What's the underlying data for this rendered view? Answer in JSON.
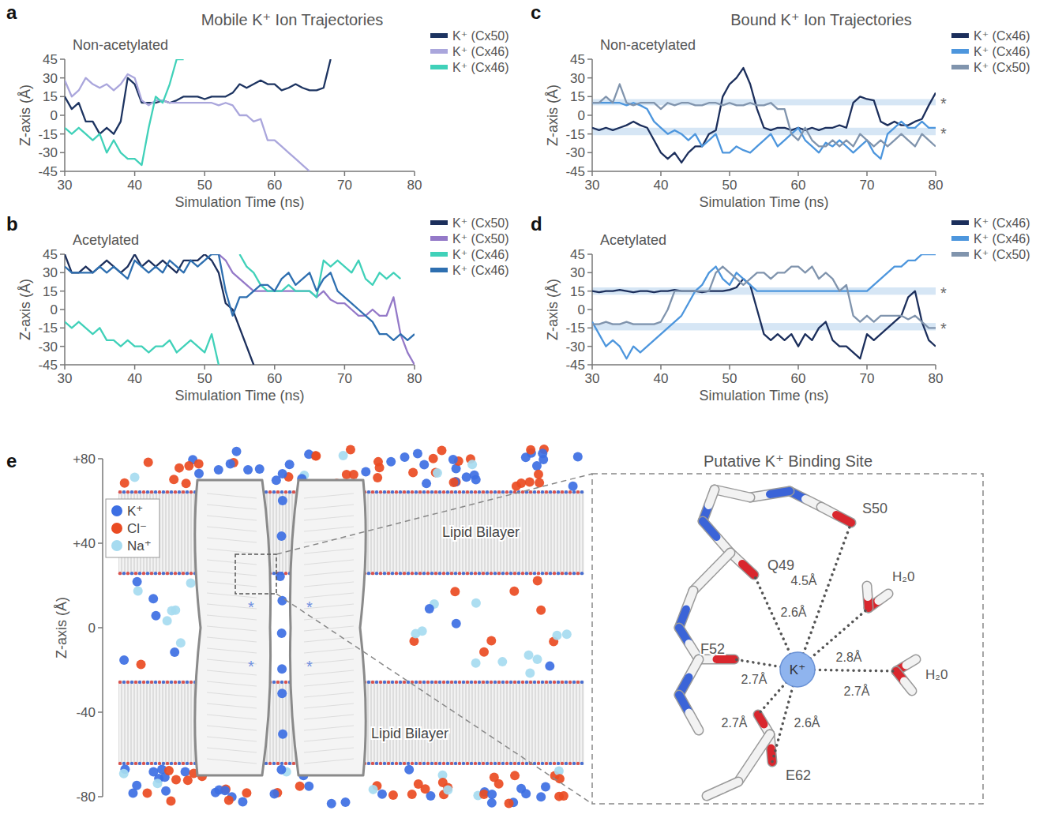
{
  "chart_data": [
    {
      "type": "line",
      "panel_label": "a",
      "title": "Mobile K⁺ Ion Trajectories",
      "subtitle": "Non-acetylated",
      "x_label": "Simulation Time (ns)",
      "y_label": "Z-axis (Å)",
      "x": [
        30,
        31,
        32,
        33,
        34,
        35,
        36,
        37,
        38,
        39,
        40,
        41,
        42,
        43,
        44,
        45,
        46,
        47,
        48,
        49,
        50,
        51,
        52,
        53,
        54,
        55,
        56,
        57,
        58,
        59,
        60,
        61,
        62,
        63,
        64,
        65,
        66,
        67,
        68,
        69,
        70,
        71,
        72,
        73,
        74,
        75,
        76,
        77,
        78,
        79,
        80
      ],
      "xlim": [
        30,
        80
      ],
      "xticks": [
        30,
        40,
        50,
        60,
        70,
        80
      ],
      "ylim": [
        -45,
        45
      ],
      "yticks": [
        -45,
        -30,
        -15,
        0,
        15,
        30,
        45
      ],
      "legend": "right",
      "series": [
        {
          "name": "K⁺ (Cx50)",
          "color": "#1d3461",
          "values": [
            15,
            5,
            10,
            -5,
            -5,
            -15,
            -10,
            -15,
            -5,
            30,
            25,
            10,
            10,
            10,
            12,
            10,
            12,
            15,
            15,
            15,
            13,
            15,
            15,
            15,
            18,
            25,
            22,
            25,
            28,
            25,
            25,
            20,
            22,
            25,
            22,
            20,
            20,
            22,
            45,
            null,
            null,
            null,
            null,
            null,
            null,
            null,
            null,
            null,
            null,
            null,
            null
          ]
        },
        {
          "name": "K⁺ (Cx46)",
          "color": "#aaa6dc",
          "values": [
            28,
            15,
            20,
            30,
            25,
            22,
            25,
            20,
            25,
            33,
            30,
            12,
            8,
            12,
            12,
            10,
            10,
            10,
            10,
            10,
            10,
            10,
            8,
            10,
            8,
            0,
            0,
            -5,
            -3,
            -20,
            -20,
            -25,
            -30,
            -35,
            -40,
            -45,
            null,
            null,
            null,
            null,
            null,
            null,
            null,
            null,
            null,
            null,
            null,
            null,
            null,
            null,
            null
          ]
        },
        {
          "name": "K⁺ (Cx46)",
          "color": "#40d1b9",
          "values": [
            -10,
            -15,
            -10,
            -15,
            -20,
            -15,
            -30,
            -20,
            -30,
            -35,
            -35,
            -40,
            -10,
            15,
            10,
            25,
            45,
            45,
            null,
            null,
            null,
            null,
            null,
            null,
            null,
            null,
            null,
            null,
            null,
            null,
            null,
            null,
            null,
            null,
            null,
            null,
            null,
            null,
            null,
            null,
            null,
            null,
            null,
            null,
            null,
            null,
            null,
            null,
            null,
            null,
            null
          ]
        }
      ]
    },
    {
      "type": "line",
      "panel_label": "b",
      "subtitle": "Acetylated",
      "x_label": "Simulation Time (ns)",
      "y_label": "Z-axis (Å)",
      "x": [
        30,
        31,
        32,
        33,
        34,
        35,
        36,
        37,
        38,
        39,
        40,
        41,
        42,
        43,
        44,
        45,
        46,
        47,
        48,
        49,
        50,
        51,
        52,
        53,
        54,
        55,
        56,
        57,
        58,
        59,
        60,
        61,
        62,
        63,
        64,
        65,
        66,
        67,
        68,
        69,
        70,
        71,
        72,
        73,
        74,
        75,
        76,
        77,
        78,
        79,
        80
      ],
      "xlim": [
        30,
        80
      ],
      "xticks": [
        30,
        40,
        50,
        60,
        70,
        80
      ],
      "ylim": [
        -45,
        45
      ],
      "yticks": [
        -45,
        -30,
        -15,
        0,
        15,
        30,
        45
      ],
      "legend": "right",
      "series": [
        {
          "name": "K⁺ (Cx50)",
          "color": "#1c2f5c",
          "values": [
            45,
            30,
            30,
            35,
            30,
            35,
            40,
            35,
            30,
            35,
            45,
            35,
            40,
            35,
            40,
            35,
            30,
            40,
            40,
            40,
            45,
            40,
            30,
            5,
            0,
            -15,
            -30,
            -45,
            null,
            null,
            null,
            null,
            null,
            null,
            null,
            null,
            null,
            null,
            null,
            null,
            null,
            null,
            null,
            null,
            null,
            null,
            null,
            null,
            null,
            null,
            null
          ]
        },
        {
          "name": "K⁺ (Cx50)",
          "color": "#9479c8",
          "values": [
            null,
            null,
            null,
            null,
            null,
            null,
            null,
            null,
            null,
            null,
            null,
            null,
            null,
            null,
            null,
            null,
            null,
            null,
            null,
            null,
            null,
            null,
            45,
            40,
            30,
            25,
            20,
            15,
            15,
            15,
            15,
            15,
            15,
            15,
            15,
            15,
            10,
            15,
            8,
            5,
            5,
            0,
            -5,
            -5,
            0,
            -5,
            -5,
            10,
            -20,
            -35,
            -45
          ]
        },
        {
          "name": "K⁺ (Cx46)",
          "color": "#40d1b9",
          "values": [
            -10,
            -15,
            -10,
            -15,
            -20,
            -15,
            -25,
            -25,
            -30,
            -25,
            -30,
            -30,
            -35,
            -30,
            -30,
            -25,
            -35,
            -30,
            -25,
            -30,
            -35,
            -20,
            -45,
            null,
            null,
            45,
            35,
            30,
            20,
            15,
            15,
            15,
            20,
            15,
            15,
            15,
            10,
            40,
            35,
            40,
            35,
            30,
            40,
            25,
            20,
            30,
            25,
            30,
            25,
            null,
            null
          ]
        },
        {
          "name": "K⁺ (Cx46)",
          "color": "#2e6fb0",
          "values": [
            35,
            30,
            30,
            30,
            30,
            35,
            30,
            35,
            30,
            25,
            40,
            35,
            30,
            35,
            30,
            40,
            35,
            30,
            40,
            35,
            40,
            45,
            45,
            15,
            -5,
            10,
            10,
            15,
            20,
            20,
            15,
            25,
            30,
            20,
            25,
            30,
            15,
            25,
            30,
            15,
            10,
            5,
            0,
            -5,
            -10,
            -20,
            -20,
            -25,
            -20,
            -25,
            -20
          ]
        }
      ]
    },
    {
      "type": "line",
      "panel_label": "c",
      "title": "Bound K⁺ Ion Trajectories",
      "subtitle": "Non-acetylated",
      "x_label": "Simulation Time (ns)",
      "y_label": "Z-axis (Å)",
      "x": [
        30,
        31,
        32,
        33,
        34,
        35,
        36,
        37,
        38,
        39,
        40,
        41,
        42,
        43,
        44,
        45,
        46,
        47,
        48,
        49,
        50,
        51,
        52,
        53,
        54,
        55,
        56,
        57,
        58,
        59,
        60,
        61,
        62,
        63,
        64,
        65,
        66,
        67,
        68,
        69,
        70,
        71,
        72,
        73,
        74,
        75,
        76,
        77,
        78,
        79,
        80
      ],
      "xlim": [
        30,
        80
      ],
      "xticks": [
        30,
        40,
        50,
        60,
        70,
        80
      ],
      "ylim": [
        -45,
        45
      ],
      "yticks": [
        -45,
        -30,
        -15,
        0,
        15,
        30,
        45
      ],
      "legend": "right",
      "bands": [
        {
          "from": 8,
          "to": 13,
          "label": "*"
        },
        {
          "from": -16,
          "to": -10,
          "label": "*"
        }
      ],
      "series": [
        {
          "name": "K⁺ (Cx46)",
          "color": "#1c2f5c",
          "values": [
            -10,
            -12,
            -10,
            -12,
            -10,
            -8,
            -5,
            -8,
            -10,
            -20,
            -30,
            -35,
            -30,
            -38,
            -30,
            -25,
            -25,
            -15,
            -12,
            15,
            25,
            30,
            38,
            25,
            5,
            -10,
            -12,
            -10,
            -10,
            -12,
            -10,
            -12,
            -10,
            -12,
            -10,
            -10,
            -8,
            -10,
            10,
            15,
            13,
            12,
            -5,
            -8,
            -5,
            -8,
            -8,
            -5,
            -3,
            8,
            18
          ]
        },
        {
          "name": "K⁺ (Cx46)",
          "color": "#4d96dd",
          "values": [
            10,
            10,
            10,
            10,
            10,
            8,
            10,
            8,
            5,
            -5,
            -10,
            -15,
            -12,
            -15,
            -20,
            -15,
            -25,
            -20,
            -15,
            -30,
            -30,
            -25,
            -28,
            -30,
            -25,
            -20,
            -15,
            -25,
            -20,
            -15,
            -10,
            -20,
            -25,
            -30,
            -22,
            -25,
            -20,
            -25,
            -30,
            -25,
            -20,
            -30,
            -35,
            -15,
            -10,
            -5,
            -10,
            -10,
            -5,
            -10,
            -10
          ]
        },
        {
          "name": "K⁺ (Cx50)",
          "color": "#8094ad",
          "values": [
            10,
            10,
            15,
            10,
            25,
            10,
            8,
            10,
            10,
            10,
            5,
            10,
            8,
            10,
            10,
            8,
            8,
            10,
            10,
            8,
            10,
            8,
            8,
            10,
            8,
            8,
            10,
            5,
            5,
            -15,
            -20,
            -10,
            -20,
            -25,
            -25,
            -20,
            -25,
            -20,
            -25,
            -15,
            -20,
            -25,
            -20,
            -25,
            -20,
            -15,
            -20,
            -25,
            -15,
            -20,
            -25
          ]
        }
      ]
    },
    {
      "type": "line",
      "panel_label": "d",
      "subtitle": "Acetylated",
      "x_label": "Simulation Time (ns)",
      "y_label": "Z-axis (Å)",
      "x": [
        30,
        31,
        32,
        33,
        34,
        35,
        36,
        37,
        38,
        39,
        40,
        41,
        42,
        43,
        44,
        45,
        46,
        47,
        48,
        49,
        50,
        51,
        52,
        53,
        54,
        55,
        56,
        57,
        58,
        59,
        60,
        61,
        62,
        63,
        64,
        65,
        66,
        67,
        68,
        69,
        70,
        71,
        72,
        73,
        74,
        75,
        76,
        77,
        78,
        79,
        80
      ],
      "xlim": [
        30,
        80
      ],
      "xticks": [
        30,
        40,
        50,
        60,
        70,
        80
      ],
      "ylim": [
        -45,
        45
      ],
      "yticks": [
        -45,
        -30,
        -15,
        0,
        15,
        30,
        45
      ],
      "legend": "right",
      "bands": [
        {
          "from": 12,
          "to": 18,
          "label": "*"
        },
        {
          "from": -17,
          "to": -11,
          "label": "*"
        }
      ],
      "series": [
        {
          "name": "K⁺ (Cx46)",
          "color": "#1c2f5c",
          "values": [
            15,
            14,
            15,
            15,
            16,
            15,
            14,
            15,
            15,
            14,
            15,
            15,
            16,
            15,
            15,
            15,
            14,
            15,
            15,
            15,
            16,
            18,
            25,
            20,
            0,
            -20,
            -25,
            -20,
            -25,
            -20,
            -30,
            -20,
            -25,
            -15,
            -10,
            -25,
            -30,
            -30,
            -35,
            -40,
            -20,
            -25,
            -20,
            -15,
            -10,
            -5,
            10,
            15,
            -10,
            -25,
            -30
          ]
        },
        {
          "name": "K⁺ (Cx46)",
          "color": "#4d96dd",
          "values": [
            -10,
            -20,
            -30,
            -25,
            -30,
            -40,
            -30,
            -35,
            -30,
            -25,
            -20,
            -15,
            -10,
            -5,
            5,
            15,
            20,
            30,
            35,
            25,
            20,
            30,
            25,
            20,
            15,
            15,
            15,
            15,
            15,
            15,
            15,
            15,
            15,
            15,
            15,
            15,
            15,
            15,
            15,
            15,
            15,
            20,
            25,
            30,
            35,
            35,
            40,
            40,
            45,
            45,
            45
          ]
        },
        {
          "name": "K⁺ (Cx50)",
          "color": "#8094ad",
          "values": [
            -12,
            -12,
            -10,
            -12,
            -12,
            -10,
            -12,
            -12,
            -12,
            -12,
            -10,
            0,
            15,
            15,
            15,
            15,
            15,
            15,
            30,
            35,
            30,
            25,
            20,
            25,
            30,
            30,
            25,
            30,
            30,
            35,
            35,
            30,
            35,
            25,
            30,
            25,
            15,
            20,
            -5,
            -10,
            -5,
            -10,
            -5,
            -5,
            -5,
            -5,
            -8,
            -5,
            -10,
            -15,
            -15
          ]
        }
      ]
    }
  ],
  "diagram": {
    "panel_label": "e",
    "axis_title": "Z-axis (Å)",
    "ylim": [
      -80,
      80
    ],
    "yticks": [
      {
        "value": 80,
        "label": "+80"
      },
      {
        "value": 40,
        "label": "+40"
      },
      0,
      -40,
      -80
    ],
    "legend": [
      {
        "name": "K⁺",
        "color": "#3d6fe3"
      },
      {
        "name": "Cl⁻",
        "color": "#ea4b22"
      },
      {
        "name": "Na⁺",
        "color": "#a6dbf0"
      }
    ],
    "region_labels": [
      "Lipid Bilayer",
      "Lipid Bilayer"
    ],
    "site_marker": "*",
    "inset": {
      "title": "Putative K⁺ Binding Site",
      "ion": "K⁺",
      "residues": [
        "S50",
        "Q49",
        "F52",
        "E62"
      ],
      "waters": [
        "H₂0",
        "H₂0"
      ],
      "distances": [
        "2.6Å",
        "4.5Å",
        "2.8Å",
        "2.7Å",
        "2.7Å",
        "2.7Å",
        "2.6Å"
      ]
    }
  }
}
